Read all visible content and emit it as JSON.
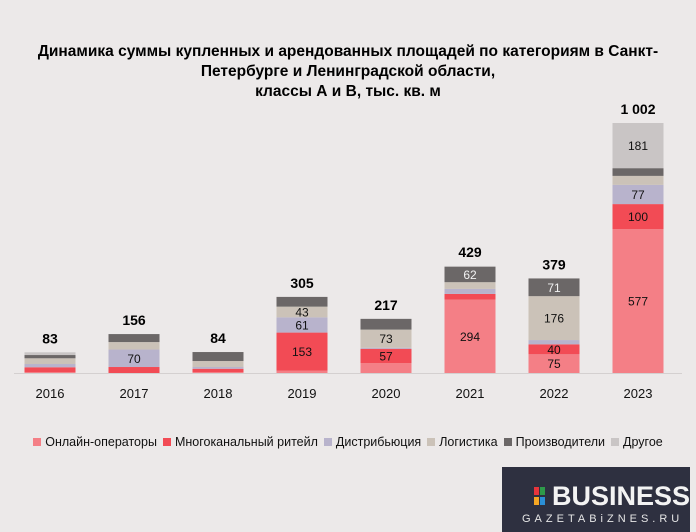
{
  "chart_data": {
    "type": "bar",
    "stacked": true,
    "title_lines": [
      "Динамика суммы купленных и арендованных площадей по категориям в Санкт-",
      "Петербурге и Ленинградской области,",
      "классы А и В, тыс. кв.  м"
    ],
    "categories": [
      "2016",
      "2017",
      "2018",
      "2019",
      "2020",
      "2021",
      "2022",
      "2023"
    ],
    "totals": [
      83,
      156,
      84,
      305,
      217,
      429,
      379,
      1002
    ],
    "total_labels": [
      "83",
      "156",
      "84",
      "305",
      "217",
      "429",
      "379",
      "1 002"
    ],
    "series": [
      {
        "name": "Онлайн-операторы",
        "color": "#f47f86",
        "values": [
          3,
          0,
          4,
          9,
          40,
          294,
          75,
          577
        ],
        "labels": [
          null,
          null,
          null,
          null,
          null,
          "294",
          "75",
          "577"
        ]
      },
      {
        "name": "Многоканальный ритейл",
        "color": "#f24b55",
        "values": [
          20,
          24,
          13,
          153,
          57,
          23,
          40,
          100
        ],
        "labels": [
          null,
          null,
          null,
          "153",
          "57",
          null,
          "40",
          "100"
        ]
      },
      {
        "name": "Дистрибьюция",
        "color": "#b8b3cc",
        "values": [
          13,
          70,
          7,
          61,
          4,
          20,
          17,
          77
        ],
        "labels": [
          null,
          "70",
          null,
          "61",
          null,
          null,
          null,
          "77"
        ]
      },
      {
        "name": "Логистика",
        "color": "#cbc2b8",
        "values": [
          23,
          30,
          24,
          43,
          73,
          27,
          176,
          36
        ],
        "labels": [
          null,
          null,
          null,
          "43",
          "73",
          null,
          "176",
          null
        ]
      },
      {
        "name": "Производители",
        "color": "#6b6767",
        "values": [
          13,
          32,
          36,
          39,
          43,
          62,
          71,
          31
        ],
        "labels": [
          null,
          null,
          null,
          null,
          null,
          "62",
          "71",
          null
        ]
      },
      {
        "name": "Другое",
        "color": "#c9c5c5",
        "values": [
          11,
          0,
          0,
          0,
          0,
          3,
          0,
          181
        ],
        "labels": [
          null,
          null,
          null,
          null,
          null,
          null,
          null,
          "181"
        ]
      }
    ],
    "ylim": [
      0,
      1002
    ],
    "legend_position": "bottom",
    "grid": false
  },
  "logo": {
    "name": "BUSINESS",
    "site": "GAZETABiZNES.RU"
  }
}
